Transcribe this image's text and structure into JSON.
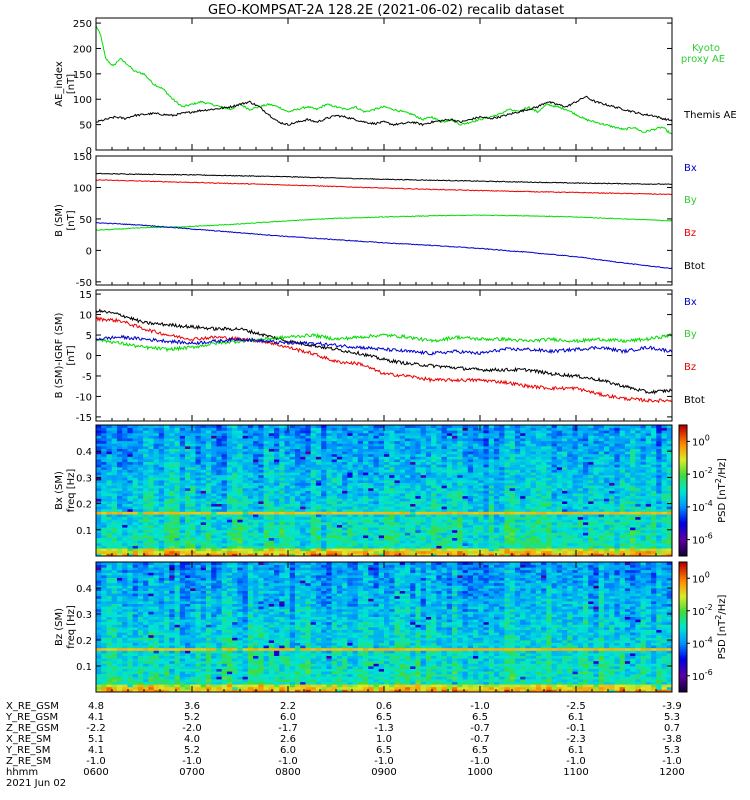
{
  "title": "GEO-KOMPSAT-2A 128.2E (2021-06-02) recalib dataset",
  "colors": {
    "black": "#000000",
    "red": "#ee0000",
    "green": "#00dd00",
    "blue": "#0000cc",
    "legend_green": "#33cc33"
  },
  "chart_data": [
    {
      "id": "ae",
      "type": "line",
      "ylabel": [
        "AE_index",
        "[nT]"
      ],
      "yticks": [
        "250",
        "200",
        "150",
        "100",
        "50",
        "0"
      ],
      "ylim": [
        0,
        260
      ],
      "x": [
        "06:00",
        "07:00",
        "08:00",
        "09:00",
        "10:00",
        "11:00",
        "12:00"
      ],
      "series": [
        {
          "name": "Kyoto proxy AE",
          "color": "green",
          "x": [
            6.0,
            6.05,
            6.1,
            6.18,
            6.25,
            6.32,
            6.4,
            6.5,
            6.6,
            6.7,
            6.8,
            6.9,
            7.0,
            7.1,
            7.2,
            7.3,
            7.4,
            7.5,
            7.6,
            7.7,
            7.8,
            7.9,
            8.0,
            8.1,
            8.2,
            8.3,
            8.4,
            8.5,
            8.6,
            8.7,
            8.8,
            8.9,
            9.0,
            9.1,
            9.2,
            9.3,
            9.4,
            9.5,
            9.6,
            9.7,
            9.8,
            9.9,
            10.0,
            10.1,
            10.2,
            10.3,
            10.4,
            10.5,
            10.6,
            10.7,
            10.8,
            10.9,
            11.0,
            11.1,
            11.2,
            11.3,
            11.4,
            11.5,
            11.6,
            11.7,
            11.8,
            11.9,
            12.0
          ],
          "values": [
            245,
            225,
            180,
            165,
            180,
            170,
            155,
            150,
            130,
            120,
            100,
            85,
            90,
            95,
            90,
            85,
            80,
            90,
            80,
            85,
            90,
            85,
            75,
            80,
            85,
            80,
            90,
            85,
            80,
            85,
            75,
            80,
            85,
            80,
            75,
            70,
            60,
            65,
            55,
            60,
            50,
            55,
            60,
            65,
            70,
            80,
            75,
            85,
            75,
            90,
            85,
            80,
            70,
            60,
            55,
            50,
            45,
            40,
            45,
            35,
            40,
            45,
            30
          ]
        },
        {
          "name": "Themis AE",
          "color": "black",
          "x": [
            6.0,
            6.1,
            6.2,
            6.3,
            6.4,
            6.5,
            6.6,
            6.7,
            6.8,
            6.9,
            7.0,
            7.1,
            7.2,
            7.3,
            7.4,
            7.5,
            7.6,
            7.7,
            7.8,
            7.9,
            8.0,
            8.1,
            8.2,
            8.3,
            8.4,
            8.5,
            8.6,
            8.7,
            8.8,
            8.9,
            9.0,
            9.1,
            9.2,
            9.3,
            9.4,
            9.5,
            9.6,
            9.7,
            9.8,
            9.9,
            10.0,
            10.1,
            10.2,
            10.3,
            10.4,
            10.5,
            10.6,
            10.7,
            10.8,
            10.9,
            11.0,
            11.1,
            11.2,
            11.3,
            11.4,
            11.5,
            11.6,
            11.7,
            11.8,
            11.9,
            12.0
          ],
          "values": [
            55,
            60,
            65,
            62,
            68,
            70,
            72,
            70,
            68,
            72,
            75,
            78,
            80,
            82,
            85,
            90,
            95,
            85,
            70,
            55,
            50,
            55,
            60,
            55,
            62,
            68,
            65,
            60,
            55,
            52,
            55,
            50,
            52,
            55,
            50,
            55,
            58,
            60,
            55,
            60,
            65,
            62,
            65,
            70,
            75,
            80,
            85,
            95,
            90,
            85,
            95,
            105,
            95,
            90,
            85,
            80,
            75,
            70,
            68,
            62,
            58
          ]
        }
      ],
      "legend": [
        "Kyoto",
        "proxy AE",
        "Themis AE"
      ]
    },
    {
      "id": "b_sm",
      "type": "line",
      "ylabel": [
        "B (SM)",
        "[nT]"
      ],
      "yticks": [
        "150",
        "100",
        "50",
        "0",
        "-50"
      ],
      "ylim": [
        -55,
        150
      ],
      "x": [
        "06:00",
        "07:00",
        "08:00",
        "09:00",
        "10:00",
        "11:00",
        "12:00"
      ],
      "series": [
        {
          "name": "Btot",
          "color": "black",
          "x": [
            6.0,
            7.0,
            8.0,
            9.0,
            10.0,
            11.0,
            12.0
          ],
          "values": [
            122,
            120,
            117,
            113,
            110,
            107,
            105
          ]
        },
        {
          "name": "Bz",
          "color": "red",
          "x": [
            6.0,
            7.0,
            8.0,
            9.0,
            10.0,
            11.0,
            12.0
          ],
          "values": [
            112,
            108,
            104,
            99,
            95,
            92,
            89
          ]
        },
        {
          "name": "By",
          "color": "green",
          "x": [
            6.0,
            6.5,
            7.0,
            7.5,
            8.0,
            8.5,
            9.0,
            9.5,
            10.0,
            10.5,
            11.0,
            11.5,
            12.0
          ],
          "values": [
            32,
            36,
            38,
            42,
            47,
            51,
            53,
            55,
            56,
            55,
            53,
            50,
            47
          ]
        },
        {
          "name": "Bx",
          "color": "blue",
          "x": [
            6.0,
            6.5,
            7.0,
            7.5,
            8.0,
            8.5,
            9.0,
            9.5,
            10.0,
            10.5,
            11.0,
            11.5,
            12.0
          ],
          "values": [
            44,
            40,
            34,
            28,
            22,
            17,
            12,
            8,
            3,
            -3,
            -10,
            -20,
            -29
          ]
        }
      ],
      "legend": [
        "Bx",
        "By",
        "Bz",
        "Btot"
      ]
    },
    {
      "id": "b_igrf",
      "type": "line",
      "ylabel": [
        "B (SM)-IGRF (SM)",
        "[nT]"
      ],
      "yticks": [
        "15",
        "10",
        "5",
        "0",
        "-5",
        "-10",
        "-15"
      ],
      "ylim": [
        -16,
        16
      ],
      "x": [
        "06:00",
        "07:00",
        "08:00",
        "09:00",
        "10:00",
        "11:00",
        "12:00"
      ],
      "series": [
        {
          "name": "Btot",
          "color": "black",
          "x": [
            6.0,
            6.25,
            6.5,
            6.75,
            7.0,
            7.25,
            7.5,
            7.75,
            8.0,
            8.25,
            8.5,
            8.75,
            9.0,
            9.25,
            9.5,
            9.75,
            10.0,
            10.25,
            10.5,
            10.75,
            11.0,
            11.25,
            11.5,
            11.75,
            12.0
          ],
          "values": [
            11,
            10,
            8,
            7.5,
            7,
            6.5,
            6.5,
            5,
            3.5,
            2.5,
            1.5,
            0.5,
            -1,
            -2,
            -2.5,
            -3,
            -3.5,
            -3.5,
            -3.5,
            -4.5,
            -5,
            -6,
            -7.5,
            -9,
            -8.5
          ]
        },
        {
          "name": "Bz",
          "color": "red",
          "x": [
            6.0,
            6.25,
            6.5,
            6.75,
            7.0,
            7.25,
            7.5,
            7.75,
            8.0,
            8.25,
            8.5,
            8.75,
            9.0,
            9.25,
            9.5,
            9.75,
            10.0,
            10.25,
            10.5,
            10.75,
            11.0,
            11.25,
            11.5,
            11.75,
            12.0
          ],
          "values": [
            9,
            8.5,
            6.5,
            5,
            4,
            4.5,
            4,
            3.5,
            2,
            0.5,
            -1.5,
            -2,
            -4.5,
            -5,
            -6,
            -6,
            -6,
            -6.5,
            -7.5,
            -8,
            -8,
            -9.5,
            -10.5,
            -11,
            -11
          ]
        },
        {
          "name": "By",
          "color": "green",
          "x": [
            6.0,
            6.25,
            6.5,
            6.75,
            7.0,
            7.25,
            7.5,
            7.75,
            8.0,
            8.25,
            8.5,
            8.75,
            9.0,
            9.25,
            9.5,
            9.75,
            10.0,
            10.25,
            10.5,
            10.75,
            11.0,
            11.25,
            11.5,
            11.75,
            12.0
          ],
          "values": [
            4,
            3,
            2,
            1.5,
            2,
            3,
            3.5,
            4,
            4.5,
            5,
            4,
            4.5,
            5,
            4.5,
            3.5,
            4.5,
            4,
            4,
            3.5,
            4,
            3.5,
            4,
            3.5,
            4,
            5
          ]
        },
        {
          "name": "Bx",
          "color": "blue",
          "x": [
            6.0,
            6.25,
            6.5,
            6.75,
            7.0,
            7.25,
            7.5,
            7.75,
            8.0,
            8.25,
            8.5,
            8.75,
            9.0,
            9.25,
            9.5,
            9.75,
            10.0,
            10.25,
            10.5,
            10.75,
            11.0,
            11.25,
            11.5,
            11.75,
            12.0
          ],
          "values": [
            4,
            4.5,
            4,
            3.5,
            3,
            3.5,
            4,
            3.5,
            3,
            3,
            2.5,
            2,
            1.5,
            1,
            0.5,
            1,
            0.5,
            1.5,
            1.5,
            1,
            1.5,
            2,
            1,
            2,
            1
          ]
        }
      ],
      "legend": [
        "Bx",
        "By",
        "Bz",
        "Btot"
      ]
    },
    {
      "id": "bx_spec",
      "type": "heatmap",
      "ylabel": [
        "Bx (SM)",
        "freq [Hz]"
      ],
      "yticks": [
        "0.4",
        "0.3",
        "0.2",
        "0.1"
      ],
      "ylim": [
        0,
        0.5
      ],
      "x": [
        "06:00",
        "07:00",
        "08:00",
        "09:00",
        "10:00",
        "11:00",
        "12:00"
      ],
      "z_label": "PSD [nT^2/Hz]",
      "colorbar_ticks": [
        "10^0",
        "10^-2",
        "10^-4",
        "10^-6"
      ],
      "zlim_log10": [
        -7,
        1
      ]
    },
    {
      "id": "bz_spec",
      "type": "heatmap",
      "ylabel": [
        "Bz (SM)",
        "freq [Hz]"
      ],
      "yticks": [
        "0.4",
        "0.3",
        "0.2",
        "0.1"
      ],
      "ylim": [
        0,
        0.5
      ],
      "x": [
        "06:00",
        "07:00",
        "08:00",
        "09:00",
        "10:00",
        "11:00",
        "12:00"
      ],
      "z_label": "PSD [nT^2/Hz]",
      "colorbar_ticks": [
        "10^0",
        "10^-2",
        "10^-4",
        "10^-6"
      ],
      "zlim_log10": [
        -7,
        1
      ]
    }
  ],
  "ephemeris": {
    "labels": [
      "X_RE_GSM",
      "Y_RE_GSM",
      "Z_RE_GSM",
      "X_RE_SM",
      "Y_RE_SM",
      "Z_RE_SM",
      "hhmm"
    ],
    "rows": [
      [
        "4.8",
        "3.6",
        "2.2",
        "0.6",
        "-1.0",
        "-2.5",
        "-3.9"
      ],
      [
        "4.1",
        "5.2",
        "6.0",
        "6.5",
        "6.5",
        "6.1",
        "5.3"
      ],
      [
        "-2.2",
        "-2.0",
        "-1.7",
        "-1.3",
        "-0.7",
        "-0.1",
        "0.7"
      ],
      [
        "5.1",
        "4.0",
        "2.6",
        "1.0",
        "-0.7",
        "-2.3",
        "-3.8"
      ],
      [
        "4.1",
        "5.2",
        "6.0",
        "6.5",
        "6.5",
        "6.1",
        "5.3"
      ],
      [
        "-1.0",
        "-1.0",
        "-1.0",
        "-1.0",
        "-1.0",
        "-1.0",
        "-1.0"
      ],
      [
        "0600",
        "0700",
        "0800",
        "0900",
        "1000",
        "1100",
        "1200"
      ]
    ],
    "date": "2021 Jun 02"
  }
}
